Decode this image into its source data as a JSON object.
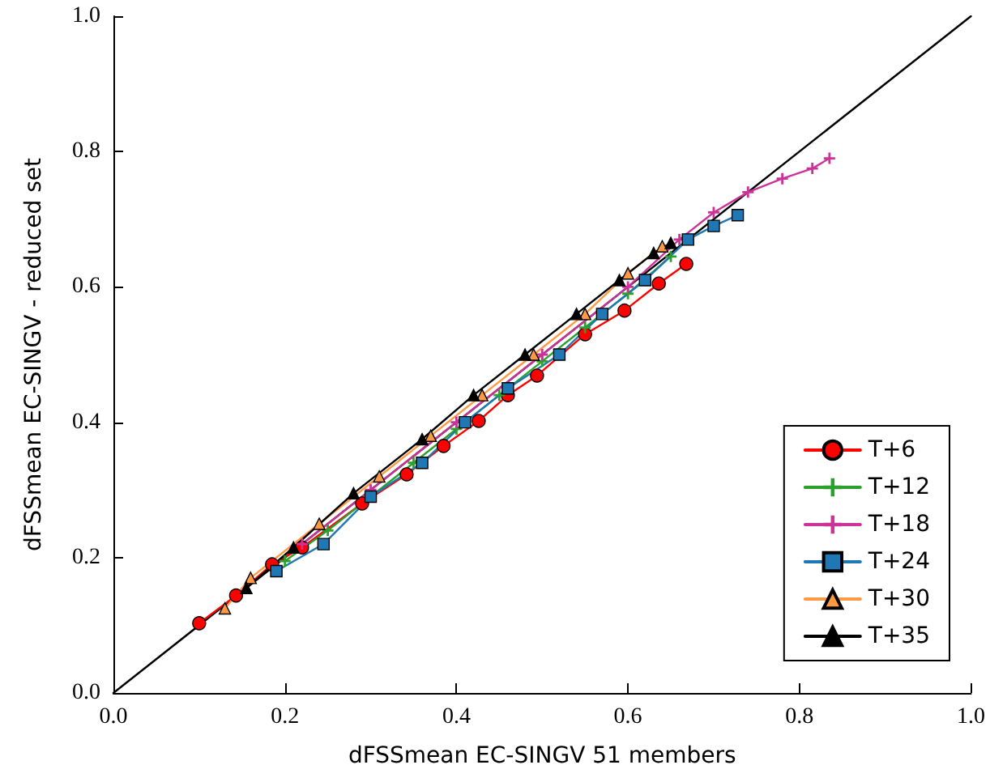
{
  "chart_data": {
    "type": "line",
    "xlabel": "dFSSmean EC-SINGV 51 members",
    "ylabel": "dFSSmean EC-SINGV - reduced set",
    "xlim": [
      0,
      1
    ],
    "ylim": [
      0,
      1
    ],
    "xticks": [
      {
        "value": 0,
        "label": "0.0"
      },
      {
        "value": 0.2,
        "label": "0.2"
      },
      {
        "value": 0.4,
        "label": "0.4"
      },
      {
        "value": 0.6,
        "label": "0.6"
      },
      {
        "value": 0.8,
        "label": "0.8"
      },
      {
        "value": 1,
        "label": "1.0"
      }
    ],
    "yticks": [
      {
        "value": 0,
        "label": "0.0"
      },
      {
        "value": 0.2,
        "label": "0.2"
      },
      {
        "value": 0.4,
        "label": "0.4"
      },
      {
        "value": 0.6,
        "label": "0.6"
      },
      {
        "value": 0.8,
        "label": "0.8"
      },
      {
        "value": 1,
        "label": "1.0"
      }
    ],
    "grid": false,
    "legend": "bottom right",
    "line_style": "solid",
    "series": [
      {
        "color": "#000000",
        "marker": "none",
        "x": [
          0,
          1
        ],
        "values": [
          0,
          1
        ]
      },
      {
        "name": "T+6",
        "color": "#ff0000",
        "marker": "circle",
        "x": [
          0.1,
          0.143,
          0.185,
          0.22,
          0.29,
          0.342,
          0.385,
          0.426,
          0.46,
          0.494,
          0.55,
          0.596,
          0.636,
          0.668
        ],
        "values": [
          0.103,
          0.144,
          0.19,
          0.215,
          0.28,
          0.323,
          0.365,
          0.402,
          0.44,
          0.469,
          0.53,
          0.565,
          0.605,
          0.634
        ]
      },
      {
        "name": "T+12",
        "color": "#2ca02c",
        "marker": "cross",
        "x": [
          0.2,
          0.25,
          0.3,
          0.35,
          0.4,
          0.45,
          0.5,
          0.55,
          0.6,
          0.65
        ],
        "values": [
          0.195,
          0.24,
          0.29,
          0.34,
          0.39,
          0.44,
          0.49,
          0.54,
          0.59,
          0.645
        ]
      },
      {
        "name": "T+18",
        "color": "#cc3399",
        "marker": "cross",
        "x": [
          0.22,
          0.3,
          0.4,
          0.5,
          0.6,
          0.66,
          0.7,
          0.74,
          0.78,
          0.815,
          0.835
        ],
        "values": [
          0.22,
          0.3,
          0.4,
          0.5,
          0.6,
          0.67,
          0.71,
          0.74,
          0.76,
          0.775,
          0.79
        ]
      },
      {
        "name": "T+24",
        "color": "#1f77b4",
        "marker": "square",
        "x": [
          0.19,
          0.245,
          0.3,
          0.36,
          0.41,
          0.46,
          0.52,
          0.57,
          0.62,
          0.67,
          0.7,
          0.728
        ],
        "values": [
          0.18,
          0.22,
          0.29,
          0.34,
          0.4,
          0.45,
          0.5,
          0.56,
          0.61,
          0.67,
          0.69,
          0.706
        ]
      },
      {
        "name": "T+30",
        "color": "#ff9944",
        "marker": "triangle",
        "x": [
          0.13,
          0.16,
          0.24,
          0.31,
          0.37,
          0.43,
          0.49,
          0.55,
          0.6,
          0.64
        ],
        "values": [
          0.125,
          0.17,
          0.25,
          0.32,
          0.38,
          0.44,
          0.5,
          0.56,
          0.62,
          0.66
        ]
      },
      {
        "name": "T+35",
        "color": "#000000",
        "marker": "triangle",
        "x": [
          0.155,
          0.21,
          0.28,
          0.36,
          0.42,
          0.48,
          0.54,
          0.59,
          0.63,
          0.65
        ],
        "values": [
          0.155,
          0.215,
          0.295,
          0.375,
          0.44,
          0.5,
          0.56,
          0.61,
          0.65,
          0.665
        ]
      }
    ]
  }
}
